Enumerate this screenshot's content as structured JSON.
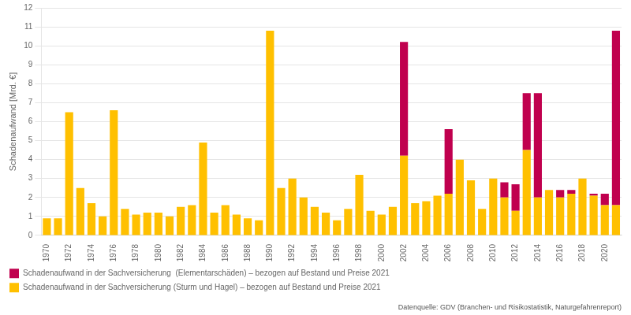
{
  "chart_data": {
    "type": "bar",
    "stacked": true,
    "ylabel": "Schadenaufwand [Mrd. €]",
    "annotations": [
      "Datenquelle: GDV (Branchen- und Risikostatistik, Naturgefahrenreport)"
    ],
    "categories": [
      "1970",
      null,
      "1972",
      null,
      "1974",
      null,
      "1976",
      null,
      "1978",
      null,
      "1980",
      null,
      "1982",
      null,
      "1984",
      null,
      "1986",
      null,
      "1988",
      null,
      "1990",
      null,
      "1992",
      null,
      "1994",
      null,
      "1996",
      null,
      "1998",
      null,
      "2000",
      null,
      "2002",
      null,
      "2004",
      null,
      "2006",
      null,
      "2008",
      null,
      "2010",
      null,
      "2012",
      null,
      "2014",
      null,
      "2016",
      null,
      "2018",
      null,
      "2020",
      null
    ],
    "series": [
      {
        "name": "Schadenaufwand in der Sachversicherung (Sturm und Hagel) – bezogen auf Bestand und Preise 2021",
        "color": "#FFC000",
        "values": [
          0.9,
          0.9,
          6.5,
          2.5,
          1.7,
          1.0,
          6.6,
          1.4,
          1.1,
          1.2,
          1.2,
          1.0,
          1.5,
          1.6,
          4.9,
          1.2,
          1.6,
          1.1,
          0.9,
          0.8,
          10.8,
          2.5,
          3.0,
          2.0,
          1.5,
          1.2,
          0.8,
          1.4,
          3.2,
          1.3,
          1.1,
          1.5,
          4.2,
          1.7,
          1.8,
          2.1,
          2.2,
          4.0,
          2.9,
          1.4,
          3.0,
          2.0,
          1.3,
          4.5,
          2.0,
          2.4,
          2.0,
          2.2,
          3.0,
          2.1,
          1.6,
          1.6
        ]
      },
      {
        "name": "Schadenaufwand in der Sachversicherung  (Elementarschäden) – bezogen auf Bestand und Preise 2021",
        "color": "#C0004E",
        "values": [
          0.0,
          0.0,
          0.0,
          0.0,
          0.0,
          0.0,
          0.0,
          0.0,
          0.0,
          0.0,
          0.0,
          0.0,
          0.0,
          0.0,
          0.0,
          0.0,
          0.0,
          0.0,
          0.0,
          0.0,
          0.0,
          0.0,
          0.0,
          0.0,
          0.0,
          0.0,
          0.0,
          0.0,
          0.0,
          0.0,
          0.0,
          0.0,
          6.0,
          0.0,
          0.0,
          0.0,
          3.4,
          0.0,
          0.0,
          0.0,
          0.0,
          0.8,
          1.4,
          3.0,
          5.5,
          0.0,
          0.4,
          0.2,
          0.0,
          0.1,
          0.6,
          9.2
        ]
      }
    ],
    "ylim": [
      0,
      12
    ],
    "yticks": [
      0,
      1,
      2,
      3,
      4,
      5,
      6,
      7,
      8,
      9,
      10,
      11,
      12
    ],
    "grid": "y",
    "legend": "bottom"
  }
}
